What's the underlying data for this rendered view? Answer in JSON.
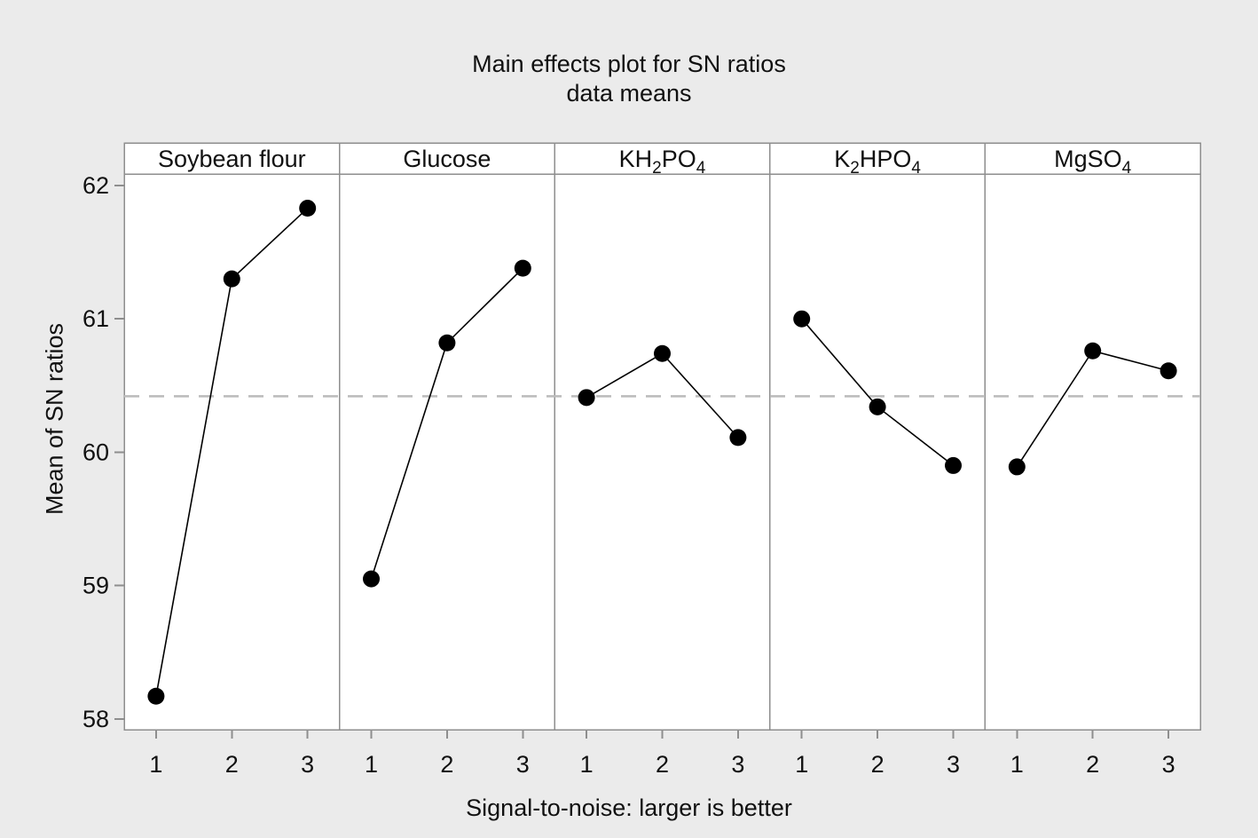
{
  "chart_data": {
    "type": "line",
    "title": "Main effects plot for SN ratios",
    "subtitle": "data means",
    "ylabel": "Mean of SN ratios",
    "xlabel": "Signal-to-noise: larger is better",
    "yticks": [
      62,
      61,
      60,
      59,
      58
    ],
    "ylim": [
      57.91,
      62.09
    ],
    "levels": [
      "1",
      "2",
      "3"
    ],
    "reference_line": 60.42,
    "legend": "none",
    "grid": "off",
    "panels": [
      {
        "label": "Soybean flour",
        "label_segments": [
          {
            "text": "Soybean flour"
          }
        ],
        "values": [
          58.17,
          61.3,
          61.83
        ]
      },
      {
        "label": "Glucose",
        "label_segments": [
          {
            "text": "Glucose"
          }
        ],
        "values": [
          59.05,
          60.82,
          61.38
        ]
      },
      {
        "label": "KH2PO4",
        "label_segments": [
          {
            "text": "KH"
          },
          {
            "text": "2",
            "sub": true
          },
          {
            "text": "PO"
          },
          {
            "text": "4",
            "sub": true
          }
        ],
        "values": [
          60.41,
          60.74,
          60.11
        ]
      },
      {
        "label": "K2HPO4",
        "label_segments": [
          {
            "text": "K"
          },
          {
            "text": "2",
            "sub": true
          },
          {
            "text": "HPO"
          },
          {
            "text": "4",
            "sub": true
          }
        ],
        "values": [
          61.0,
          60.34,
          59.9
        ]
      },
      {
        "label": "MgSO4",
        "label_segments": [
          {
            "text": "MgSO"
          },
          {
            "text": "4",
            "sub": true
          }
        ],
        "values": [
          59.89,
          60.76,
          60.61
        ]
      }
    ],
    "colors": {
      "page_bg": "#ebebeb",
      "panel_bg": "#ffffff",
      "border": "#8e8e8e",
      "ref_line": "#bbbbbb",
      "data": "#000000",
      "text": "#111111"
    }
  }
}
